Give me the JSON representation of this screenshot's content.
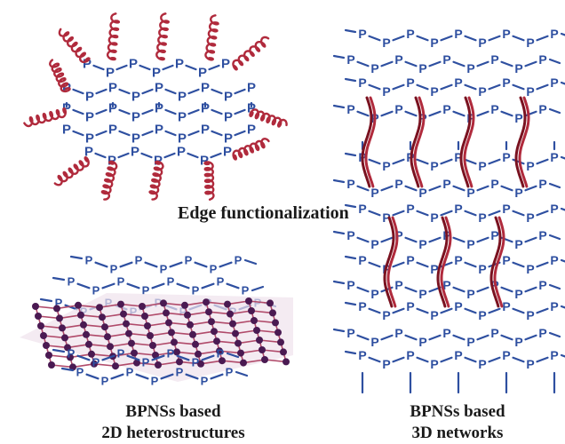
{
  "atom_label": "P",
  "colors": {
    "bond": "#2e4fa0",
    "atom": "#2e4fa0",
    "polymer": "#b02a3c",
    "polymer_dark": "#7a1220",
    "graphene_atom": "#4a1a52",
    "graphene_bond": "#b04a6a"
  },
  "panels": {
    "edge": {
      "caption": "Edge functionalization"
    },
    "hetero": {
      "caption_line1": "BPNSs based",
      "caption_line2": "2D heterostructures"
    },
    "network": {
      "caption_line1": "BPNSs based",
      "caption_line2": "3D networks"
    }
  }
}
